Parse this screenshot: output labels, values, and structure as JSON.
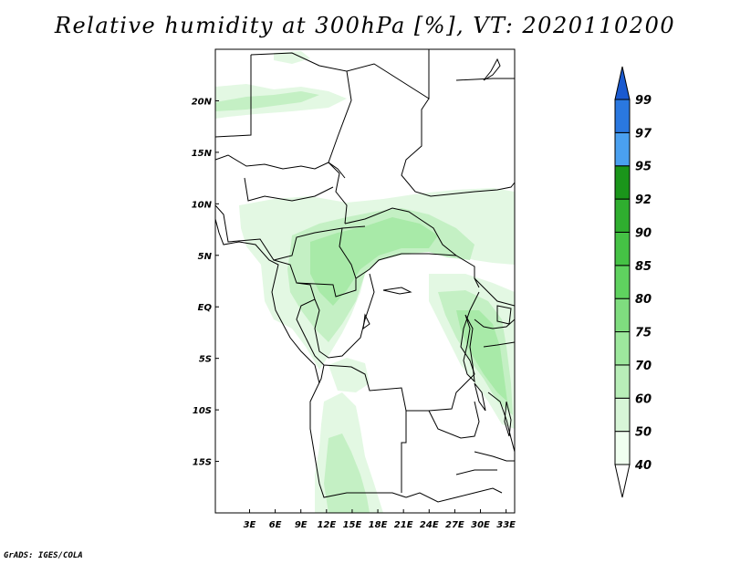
{
  "title": "Relative humidity at 300hPa [%], VT: 2020110200",
  "footer": "GrADS: IGES/COLA",
  "map": {
    "lon_range": [
      -1,
      34
    ],
    "lat_range": [
      -20,
      25
    ],
    "lon_ticks": [
      "3E",
      "6E",
      "9E",
      "12E",
      "15E",
      "18E",
      "21E",
      "24E",
      "27E",
      "30E",
      "33E"
    ],
    "lat_ticks": [
      "20N",
      "15N",
      "10N",
      "5N",
      "EQ",
      "5S",
      "10S",
      "15S"
    ]
  },
  "colorbar": {
    "levels": [
      "40",
      "50",
      "60",
      "70",
      "75",
      "80",
      "85",
      "90",
      "92",
      "95",
      "97",
      "99"
    ],
    "colors": [
      "#f0fff0",
      "#d7f5d7",
      "#b8eeb8",
      "#9de89d",
      "#7fdd7f",
      "#5fd25f",
      "#45c245",
      "#2fae2f",
      "#1a951a",
      "#4aa0f0",
      "#2a78e0",
      "#1a5ad0"
    ]
  }
}
